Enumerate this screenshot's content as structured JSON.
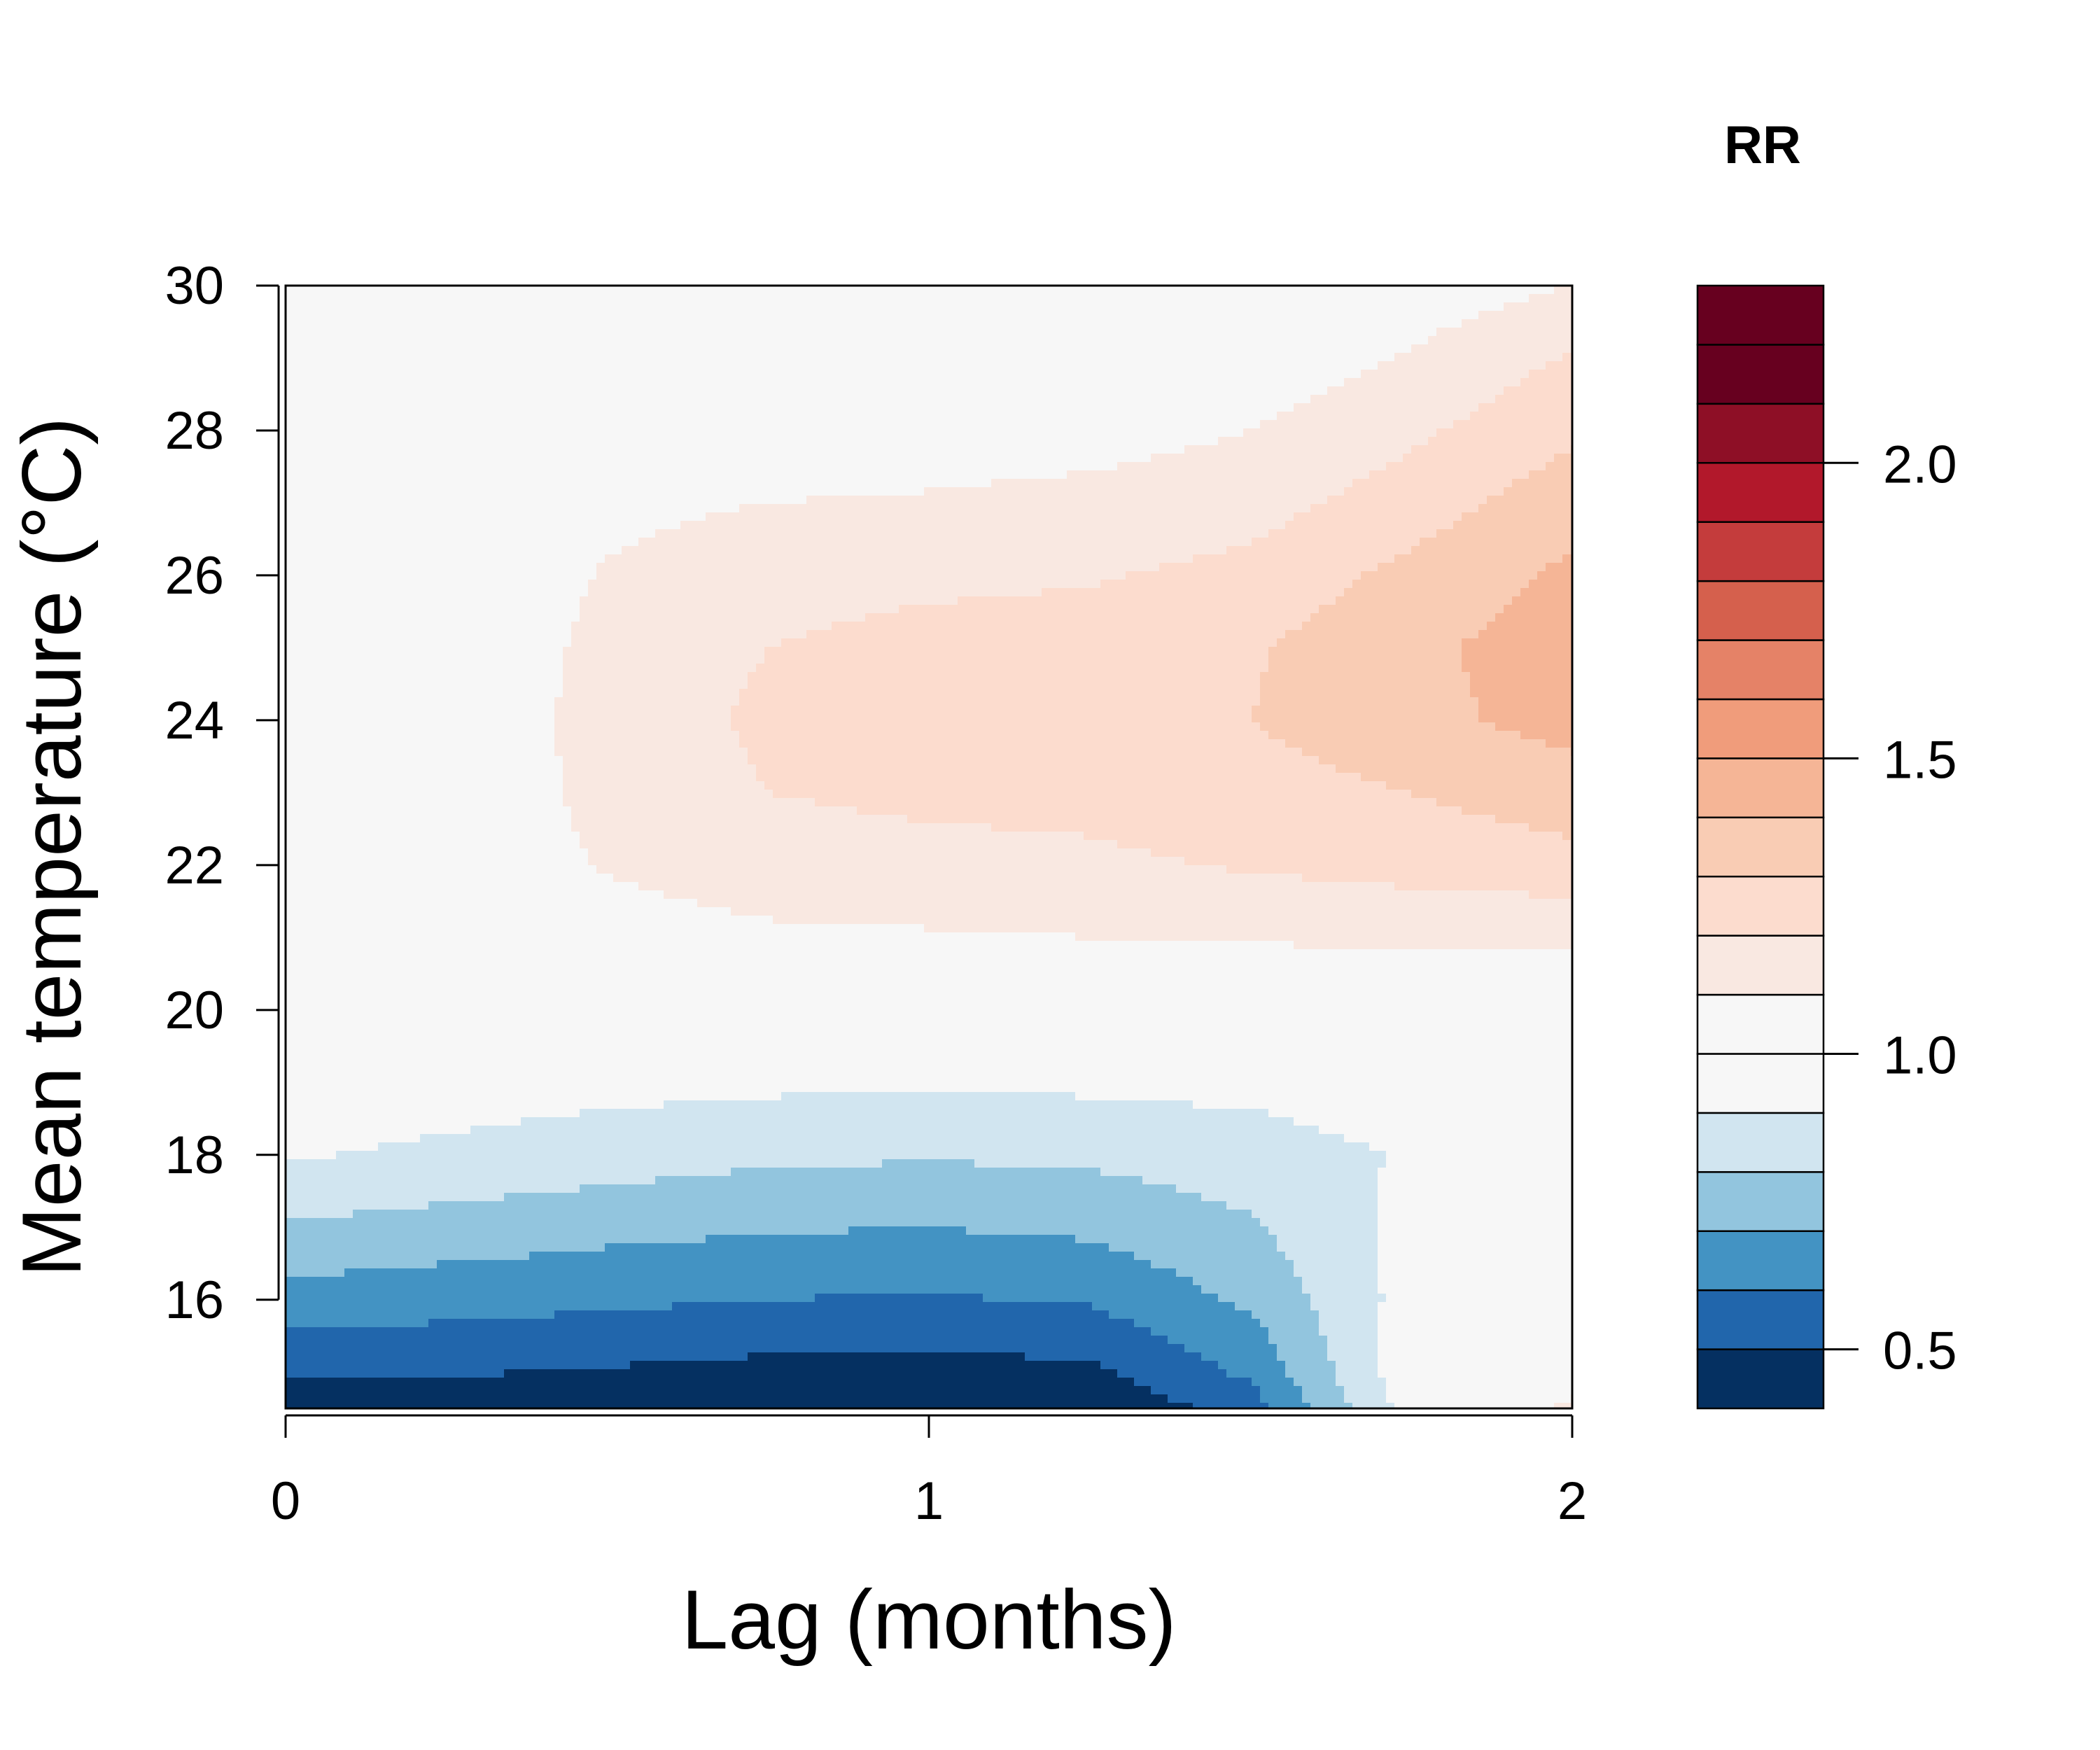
{
  "chart_data": {
    "type": "heatmap",
    "subtype": "filled-contour",
    "title": "",
    "xlabel": "Lag (months)",
    "ylabel": "Mean temperature (°C)",
    "xlim": [
      0,
      2
    ],
    "ylim": [
      14.5,
      30
    ],
    "x_ticks": [
      "0",
      "1",
      "2"
    ],
    "y_ticks": [
      "16",
      "18",
      "20",
      "22",
      "24",
      "26",
      "28",
      "30"
    ],
    "legend": {
      "title": "RR",
      "placement": "right",
      "tick_labels": [
        "0.5",
        "1.0",
        "1.5",
        "2.0"
      ],
      "tick_values": [
        0.5,
        1.0,
        1.5,
        2.0
      ],
      "range": [
        0.4,
        2.3
      ],
      "levels": [
        0.4,
        0.5,
        0.6,
        0.7,
        0.8,
        0.9,
        1.0,
        1.1,
        1.2,
        1.3,
        1.4,
        1.5,
        1.6,
        1.7,
        1.8,
        1.9,
        2.0,
        2.1,
        2.2,
        2.3
      ],
      "colors": [
        "#053061",
        "#2166ac",
        "#4393c3",
        "#92c5de",
        "#d1e5f0",
        "#f7f7f7",
        "#f7f7f7",
        "#f9e8e1",
        "#fcdcce",
        "#f9ccb4",
        "#f5b596",
        "#f09c7b",
        "#e58267",
        "#d5604d",
        "#c43c3c",
        "#b2182b",
        "#8e0f26",
        "#67001f",
        "#67001f"
      ]
    },
    "x": [
      0,
      0.25,
      0.5,
      0.75,
      1.0,
      1.25,
      1.5,
      1.75,
      2.0
    ],
    "y": [
      14.5,
      15,
      16,
      17,
      18,
      19,
      20,
      21,
      22,
      23,
      24,
      25,
      26,
      27,
      28,
      29,
      30
    ],
    "z": [
      [
        0.44,
        0.43,
        0.42,
        0.4,
        0.39,
        0.41,
        0.55,
        0.95,
        1.12
      ],
      [
        0.52,
        0.51,
        0.49,
        0.47,
        0.46,
        0.48,
        0.62,
        0.97,
        1.06
      ],
      [
        0.66,
        0.64,
        0.62,
        0.6,
        0.59,
        0.61,
        0.72,
        0.94,
        1.02
      ],
      [
        0.79,
        0.76,
        0.73,
        0.71,
        0.7,
        0.72,
        0.79,
        0.93,
        1.0
      ],
      [
        0.91,
        0.88,
        0.85,
        0.82,
        0.81,
        0.82,
        0.85,
        0.91,
        0.99
      ],
      [
        0.96,
        0.95,
        0.93,
        0.92,
        0.91,
        0.92,
        0.93,
        0.96,
        1.0
      ],
      [
        1.0,
        1.0,
        1.0,
        1.0,
        1.0,
        1.0,
        1.01,
        1.02,
        1.03
      ],
      [
        1.0,
        1.02,
        1.05,
        1.08,
        1.09,
        1.1,
        1.11,
        1.11,
        1.11
      ],
      [
        1.0,
        1.02,
        1.11,
        1.16,
        1.17,
        1.18,
        1.21,
        1.24,
        1.27
      ],
      [
        0.99,
        1.02,
        1.13,
        1.2,
        1.22,
        1.23,
        1.26,
        1.3,
        1.35
      ],
      [
        0.95,
        1.02,
        1.14,
        1.22,
        1.24,
        1.26,
        1.3,
        1.37,
        1.44
      ],
      [
        0.93,
        1.01,
        1.13,
        1.2,
        1.23,
        1.25,
        1.29,
        1.38,
        1.45
      ],
      [
        0.91,
        1.0,
        1.11,
        1.17,
        1.18,
        1.19,
        1.23,
        1.33,
        1.42
      ],
      [
        0.92,
        0.98,
        1.07,
        1.1,
        1.11,
        1.13,
        1.16,
        1.25,
        1.36
      ],
      [
        0.93,
        0.98,
        1.02,
        1.04,
        1.05,
        1.06,
        1.1,
        1.18,
        1.28
      ],
      [
        0.94,
        0.99,
        1.0,
        1.0,
        1.0,
        1.0,
        1.03,
        1.11,
        1.21
      ],
      [
        0.95,
        0.99,
        0.98,
        0.96,
        0.93,
        0.96,
        1.0,
        1.04,
        1.1
      ]
    ]
  }
}
